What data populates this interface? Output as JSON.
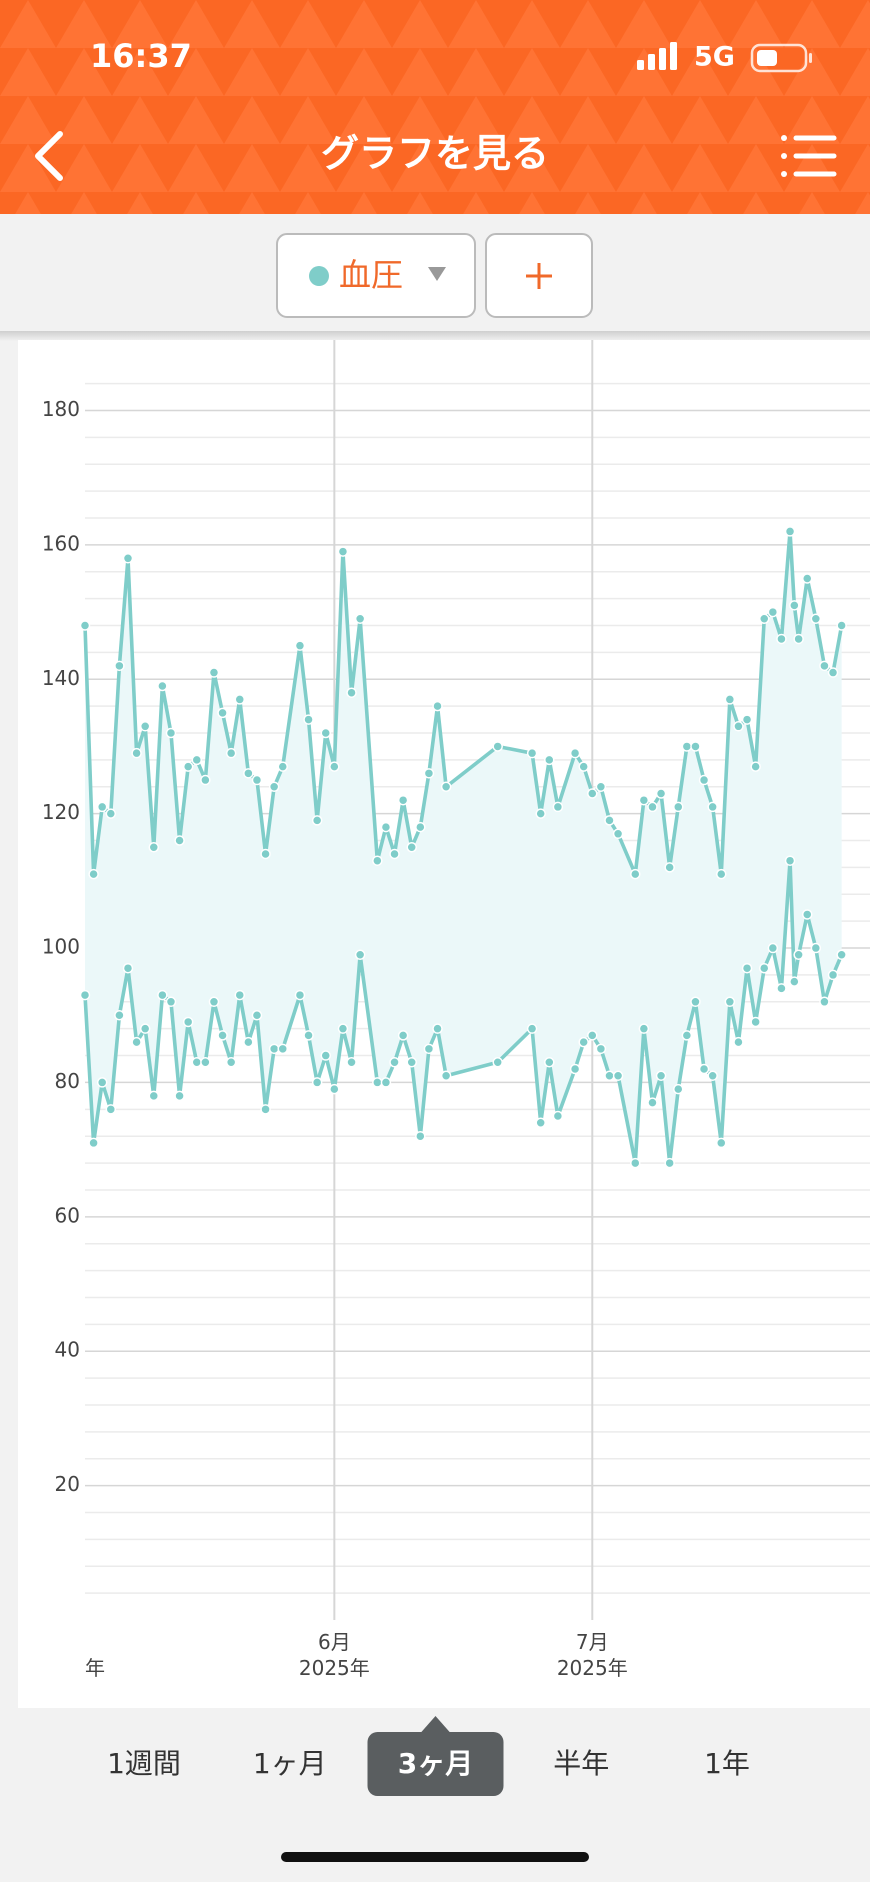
{
  "status_bar": {
    "time": "16:37",
    "network": "5G"
  },
  "header": {
    "title": "グラフを見る"
  },
  "selector": {
    "label": "血圧"
  },
  "chart_data": {
    "type": "line",
    "x": [
      0,
      1,
      2,
      3,
      4,
      5,
      6,
      7,
      8,
      9,
      10,
      11,
      12,
      13,
      14,
      15,
      16,
      17,
      18,
      19,
      20,
      21,
      22,
      23,
      25,
      26,
      27,
      28,
      29,
      30,
      31,
      32,
      34,
      35,
      36,
      37,
      38,
      39,
      40,
      41,
      42,
      48,
      52,
      53,
      54,
      55,
      57,
      58,
      59,
      60,
      61,
      62,
      64,
      65,
      66,
      67,
      68,
      69,
      70,
      71,
      72,
      73,
      74,
      75,
      76,
      77,
      78,
      79,
      80,
      81,
      82,
      82.5,
      83,
      84,
      85,
      86,
      87,
      88
    ],
    "series": [
      {
        "color": "#7fcdc9",
        "values": [
          148,
          111,
          121,
          120,
          142,
          158,
          129,
          133,
          115,
          139,
          132,
          116,
          127,
          128,
          125,
          141,
          135,
          129,
          137,
          126,
          125,
          114,
          124,
          127,
          145,
          134,
          119,
          132,
          127,
          159,
          138,
          149,
          113,
          118,
          114,
          122,
          115,
          118,
          126,
          136,
          124,
          130,
          129,
          120,
          128,
          121,
          129,
          127,
          123,
          124,
          119,
          117,
          111,
          122,
          121,
          123,
          112,
          121,
          130,
          130,
          125,
          121,
          111,
          137,
          133,
          134,
          127,
          149,
          150,
          146,
          162,
          151,
          146,
          155,
          149,
          142,
          141,
          148
        ]
      },
      {
        "color": "#7fcdc9",
        "values": [
          93,
          71,
          80,
          76,
          90,
          97,
          86,
          88,
          78,
          93,
          92,
          78,
          89,
          83,
          83,
          92,
          87,
          83,
          93,
          86,
          90,
          76,
          85,
          85,
          93,
          87,
          80,
          84,
          79,
          88,
          83,
          99,
          80,
          80,
          83,
          87,
          83,
          72,
          85,
          88,
          81,
          83,
          88,
          74,
          83,
          75,
          82,
          86,
          87,
          85,
          81,
          81,
          68,
          88,
          77,
          81,
          68,
          79,
          87,
          92,
          82,
          81,
          71,
          92,
          86,
          97,
          89,
          97,
          100,
          94,
          113,
          95,
          99,
          105,
          100,
          92,
          96,
          99
        ]
      }
    ],
    "fill_between": true,
    "fill_color": "#ebf8f9",
    "xlim": [
      0,
      91.3
    ],
    "xticks": [
      {
        "value": 0,
        "label": "年"
      },
      {
        "value": 29,
        "label": "6月\n2025年"
      },
      {
        "value": 59,
        "label": "7月\n2025年"
      }
    ],
    "ylim": [
      0,
      184
    ],
    "yticks": [
      20,
      40,
      60,
      80,
      100,
      120,
      140,
      160,
      180
    ],
    "minor_yticks": [
      4,
      8,
      12,
      16,
      24,
      28,
      32,
      36,
      44,
      48,
      52,
      56,
      64,
      68,
      72,
      76,
      84,
      88,
      92,
      96,
      104,
      108,
      112,
      116,
      124,
      128,
      132,
      136,
      144,
      148,
      152,
      156,
      164,
      168,
      172,
      176,
      184
    ],
    "grid": true
  },
  "period_tabs": {
    "items": [
      "1週間",
      "1ヶ月",
      "3ヶ月",
      "半年",
      "1年"
    ],
    "selected": 2
  }
}
